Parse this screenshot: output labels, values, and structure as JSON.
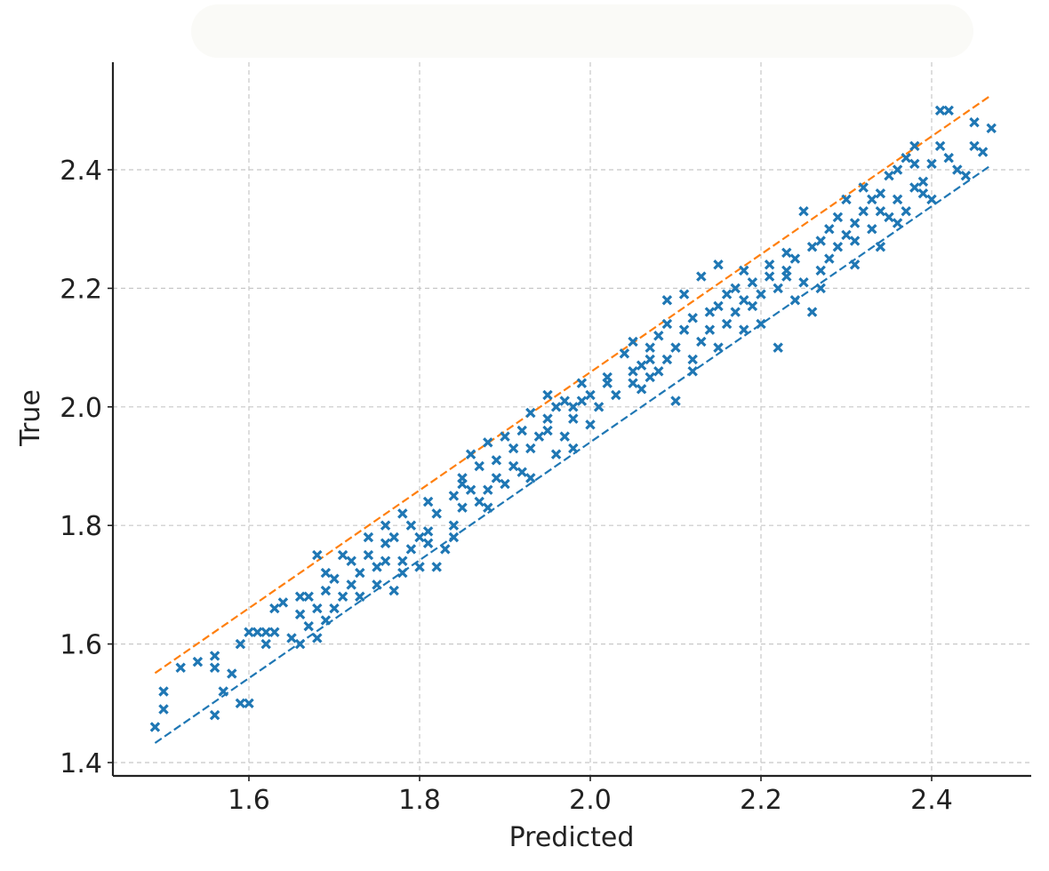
{
  "colors": {
    "points": "#1f77b4",
    "lower_line": "#1f77b4",
    "upper_line": "#ff7f0e",
    "grid": "#c8c8c8",
    "axis": "#222222"
  },
  "chart_data": {
    "type": "scatter",
    "xlabel": "Predicted",
    "ylabel": "True",
    "xlim": [
      1.45,
      2.52
    ],
    "ylim": [
      1.38,
      2.58
    ],
    "xticks": [
      "1.6",
      "1.8",
      "2.0",
      "2.2",
      "2.4"
    ],
    "yticks": [
      "1.4",
      "1.6",
      "1.8",
      "2.0",
      "2.2",
      "2.4"
    ],
    "grid": true,
    "marker": "x",
    "lines": [
      {
        "style": "dashed",
        "color": "#ff7f0e",
        "x": [
          1.49,
          2.47
        ],
        "y": [
          1.551,
          2.526
        ]
      },
      {
        "style": "dashed",
        "color": "#1f77b4",
        "x": [
          1.49,
          2.47
        ],
        "y": [
          1.433,
          2.408
        ]
      }
    ],
    "series": [
      {
        "points": [
          [
            1.49,
            1.46
          ],
          [
            1.5,
            1.52
          ],
          [
            1.5,
            1.49
          ],
          [
            1.52,
            1.56
          ],
          [
            1.54,
            1.57
          ],
          [
            1.56,
            1.56
          ],
          [
            1.56,
            1.58
          ],
          [
            1.57,
            1.52
          ],
          [
            1.56,
            1.48
          ],
          [
            1.58,
            1.55
          ],
          [
            1.59,
            1.5
          ],
          [
            1.6,
            1.5
          ],
          [
            1.59,
            1.6
          ],
          [
            1.61,
            1.62
          ],
          [
            1.6,
            1.62
          ],
          [
            1.62,
            1.62
          ],
          [
            1.62,
            1.6
          ],
          [
            1.63,
            1.66
          ],
          [
            1.63,
            1.62
          ],
          [
            1.64,
            1.67
          ],
          [
            1.65,
            1.61
          ],
          [
            1.66,
            1.65
          ],
          [
            1.66,
            1.6
          ],
          [
            1.67,
            1.68
          ],
          [
            1.67,
            1.63
          ],
          [
            1.68,
            1.66
          ],
          [
            1.68,
            1.61
          ],
          [
            1.69,
            1.64
          ],
          [
            1.69,
            1.69
          ],
          [
            1.7,
            1.66
          ],
          [
            1.7,
            1.71
          ],
          [
            1.71,
            1.68
          ],
          [
            1.71,
            1.75
          ],
          [
            1.68,
            1.75
          ],
          [
            1.72,
            1.7
          ],
          [
            1.73,
            1.72
          ],
          [
            1.74,
            1.75
          ],
          [
            1.74,
            1.78
          ],
          [
            1.75,
            1.73
          ],
          [
            1.75,
            1.7
          ],
          [
            1.76,
            1.74
          ],
          [
            1.76,
            1.77
          ],
          [
            1.77,
            1.69
          ],
          [
            1.77,
            1.78
          ],
          [
            1.78,
            1.74
          ],
          [
            1.78,
            1.82
          ],
          [
            1.79,
            1.76
          ],
          [
            1.79,
            1.8
          ],
          [
            1.8,
            1.73
          ],
          [
            1.8,
            1.78
          ],
          [
            1.81,
            1.79
          ],
          [
            1.81,
            1.84
          ],
          [
            1.82,
            1.73
          ],
          [
            1.82,
            1.82
          ],
          [
            1.83,
            1.76
          ],
          [
            1.84,
            1.8
          ],
          [
            1.84,
            1.85
          ],
          [
            1.85,
            1.83
          ],
          [
            1.85,
            1.88
          ],
          [
            1.86,
            1.86
          ],
          [
            1.86,
            1.92
          ],
          [
            1.87,
            1.84
          ],
          [
            1.87,
            1.9
          ],
          [
            1.88,
            1.86
          ],
          [
            1.88,
            1.94
          ],
          [
            1.89,
            1.88
          ],
          [
            1.89,
            1.91
          ],
          [
            1.9,
            1.87
          ],
          [
            1.9,
            1.95
          ],
          [
            1.91,
            1.9
          ],
          [
            1.92,
            1.89
          ],
          [
            1.92,
            1.96
          ],
          [
            1.93,
            1.93
          ],
          [
            1.93,
            1.99
          ],
          [
            1.94,
            1.95
          ],
          [
            1.95,
            1.98
          ],
          [
            1.95,
            2.02
          ],
          [
            1.96,
            1.92
          ],
          [
            1.96,
            2.0
          ],
          [
            1.97,
            1.95
          ],
          [
            1.97,
            2.01
          ],
          [
            1.98,
            1.93
          ],
          [
            1.98,
            1.98
          ],
          [
            1.99,
            2.01
          ],
          [
            1.99,
            2.04
          ],
          [
            2.0,
            1.97
          ],
          [
            2.0,
            2.02
          ],
          [
            2.01,
            2.0
          ],
          [
            2.02,
            2.04
          ],
          [
            2.03,
            2.02
          ],
          [
            2.04,
            2.09
          ],
          [
            2.05,
            2.06
          ],
          [
            2.05,
            2.04
          ],
          [
            2.06,
            2.07
          ],
          [
            2.06,
            2.03
          ],
          [
            2.07,
            2.1
          ],
          [
            2.07,
            2.05
          ],
          [
            2.08,
            2.12
          ],
          [
            2.08,
            2.06
          ],
          [
            2.09,
            2.08
          ],
          [
            2.09,
            2.14
          ],
          [
            2.1,
            2.01
          ],
          [
            2.1,
            2.1
          ],
          [
            2.11,
            2.13
          ],
          [
            2.11,
            2.19
          ],
          [
            2.12,
            2.08
          ],
          [
            2.12,
            2.15
          ],
          [
            2.13,
            2.11
          ],
          [
            2.13,
            2.22
          ],
          [
            2.14,
            2.16
          ],
          [
            2.14,
            2.13
          ],
          [
            2.15,
            2.17
          ],
          [
            2.15,
            2.1
          ],
          [
            2.16,
            2.19
          ],
          [
            2.16,
            2.14
          ],
          [
            2.17,
            2.2
          ],
          [
            2.17,
            2.16
          ],
          [
            2.18,
            2.23
          ],
          [
            2.18,
            2.18
          ],
          [
            2.19,
            2.17
          ],
          [
            2.19,
            2.21
          ],
          [
            2.2,
            2.19
          ],
          [
            2.2,
            2.14
          ],
          [
            2.21,
            2.24
          ],
          [
            2.21,
            2.22
          ],
          [
            2.22,
            2.1
          ],
          [
            2.22,
            2.2
          ],
          [
            2.23,
            2.26
          ],
          [
            2.23,
            2.23
          ],
          [
            2.24,
            2.18
          ],
          [
            2.24,
            2.25
          ],
          [
            2.25,
            2.21
          ],
          [
            2.25,
            2.33
          ],
          [
            2.26,
            2.27
          ],
          [
            2.26,
            2.16
          ],
          [
            2.27,
            2.23
          ],
          [
            2.27,
            2.28
          ],
          [
            2.28,
            2.25
          ],
          [
            2.28,
            2.3
          ],
          [
            2.29,
            2.27
          ],
          [
            2.29,
            2.32
          ],
          [
            2.3,
            2.29
          ],
          [
            2.3,
            2.35
          ],
          [
            2.31,
            2.31
          ],
          [
            2.31,
            2.28
          ],
          [
            2.32,
            2.33
          ],
          [
            2.32,
            2.37
          ],
          [
            2.33,
            2.3
          ],
          [
            2.33,
            2.35
          ],
          [
            2.34,
            2.27
          ],
          [
            2.34,
            2.36
          ],
          [
            2.35,
            2.32
          ],
          [
            2.35,
            2.39
          ],
          [
            2.36,
            2.35
          ],
          [
            2.36,
            2.4
          ],
          [
            2.37,
            2.33
          ],
          [
            2.37,
            2.42
          ],
          [
            2.38,
            2.37
          ],
          [
            2.38,
            2.44
          ],
          [
            2.39,
            2.38
          ],
          [
            2.39,
            2.36
          ],
          [
            2.4,
            2.41
          ],
          [
            2.4,
            2.35
          ],
          [
            2.41,
            2.44
          ],
          [
            2.41,
            2.5
          ],
          [
            2.42,
            2.42
          ],
          [
            2.42,
            2.5
          ],
          [
            2.43,
            2.4
          ],
          [
            2.44,
            2.39
          ],
          [
            2.45,
            2.44
          ],
          [
            2.45,
            2.48
          ],
          [
            2.46,
            2.43
          ],
          [
            2.47,
            2.47
          ],
          [
            1.95,
            1.96
          ],
          [
            1.91,
            1.93
          ],
          [
            2.05,
            2.11
          ],
          [
            2.09,
            2.18
          ],
          [
            2.15,
            2.24
          ],
          [
            1.88,
            1.83
          ],
          [
            1.76,
            1.8
          ],
          [
            1.73,
            1.68
          ],
          [
            1.66,
            1.68
          ],
          [
            1.81,
            1.77
          ],
          [
            2.02,
            2.05
          ],
          [
            2.18,
            2.13
          ],
          [
            2.27,
            2.2
          ],
          [
            2.34,
            2.33
          ],
          [
            2.38,
            2.41
          ],
          [
            2.31,
            2.24
          ],
          [
            2.12,
            2.06
          ],
          [
            1.98,
            2.0
          ],
          [
            1.85,
            1.87
          ],
          [
            1.72,
            1.74
          ],
          [
            1.69,
            1.72
          ],
          [
            1.78,
            1.72
          ],
          [
            1.84,
            1.78
          ],
          [
            1.93,
            1.88
          ],
          [
            2.07,
            2.08
          ],
          [
            2.23,
            2.22
          ],
          [
            2.36,
            2.31
          ]
        ]
      }
    ]
  }
}
